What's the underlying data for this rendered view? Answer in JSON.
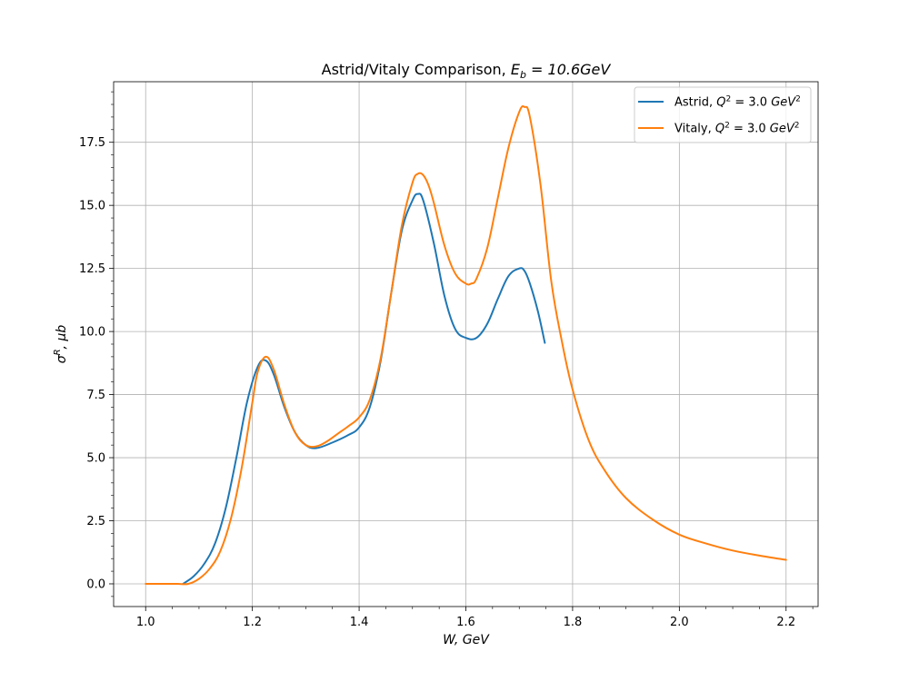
{
  "chart_data": {
    "type": "line",
    "title": "Astrid/Vitaly Comparison, E_b = 10.6GeV",
    "title_prefix": "Astrid/Vitaly Comparison, ",
    "title_math_base": "E",
    "title_math_sub": "b",
    "title_math_rest": " = 10.6GeV",
    "xlabel": "W, GeV",
    "ylabel": "σ^R, μb",
    "xlim": [
      0.94,
      2.26
    ],
    "ylim": [
      -0.9,
      19.9
    ],
    "grid": true,
    "legend_position": "top-right",
    "x_ticks": [
      1.0,
      1.2,
      1.4,
      1.6,
      1.8,
      2.0,
      2.2
    ],
    "x_tick_labels": [
      "1.0",
      "1.2",
      "1.4",
      "1.6",
      "1.8",
      "2.0",
      "2.2"
    ],
    "y_ticks": [
      0.0,
      2.5,
      5.0,
      7.5,
      10.0,
      12.5,
      15.0,
      17.5
    ],
    "y_tick_labels": [
      "0.0",
      "2.5",
      "5.0",
      "7.5",
      "10.0",
      "12.5",
      "15.0",
      "17.5"
    ],
    "series": [
      {
        "name": "Astrid, Q² = 3.0 GeV²",
        "color": "#1f77b4",
        "x": [
          1.07,
          1.09,
          1.11,
          1.13,
          1.15,
          1.17,
          1.19,
          1.21,
          1.225,
          1.24,
          1.26,
          1.28,
          1.3,
          1.32,
          1.35,
          1.38,
          1.4,
          1.42,
          1.44,
          1.46,
          1.48,
          1.5,
          1.51,
          1.52,
          1.54,
          1.56,
          1.58,
          1.6,
          1.62,
          1.64,
          1.66,
          1.68,
          1.7,
          1.71,
          1.72,
          1.735,
          1.748
        ],
        "y": [
          0.0,
          0.3,
          0.8,
          1.6,
          3.0,
          5.0,
          7.2,
          8.6,
          8.85,
          8.3,
          7.0,
          6.0,
          5.5,
          5.38,
          5.6,
          5.9,
          6.2,
          7.0,
          8.8,
          11.5,
          14.0,
          15.2,
          15.45,
          15.2,
          13.5,
          11.4,
          10.1,
          9.75,
          9.75,
          10.3,
          11.3,
          12.2,
          12.5,
          12.4,
          11.9,
          10.8,
          9.55
        ]
      },
      {
        "name": "Vitaly, Q² = 3.0 GeV²",
        "color": "#ff7f0e",
        "x": [
          1.0,
          1.02,
          1.04,
          1.06,
          1.08,
          1.1,
          1.12,
          1.14,
          1.16,
          1.18,
          1.2,
          1.21,
          1.225,
          1.24,
          1.26,
          1.28,
          1.3,
          1.32,
          1.34,
          1.36,
          1.38,
          1.4,
          1.42,
          1.44,
          1.46,
          1.48,
          1.5,
          1.51,
          1.52,
          1.53,
          1.54,
          1.56,
          1.58,
          1.6,
          1.61,
          1.62,
          1.64,
          1.66,
          1.68,
          1.7,
          1.71,
          1.72,
          1.74,
          1.76,
          1.78,
          1.8,
          1.83,
          1.86,
          1.9,
          1.95,
          2.0,
          2.05,
          2.1,
          2.15,
          2.2
        ],
        "y": [
          0.0,
          0.0,
          0.0,
          0.0,
          0.0,
          0.2,
          0.6,
          1.3,
          2.6,
          4.6,
          7.2,
          8.4,
          9.0,
          8.5,
          7.1,
          6.0,
          5.5,
          5.45,
          5.65,
          5.95,
          6.25,
          6.6,
          7.3,
          8.9,
          11.5,
          14.2,
          15.9,
          16.25,
          16.2,
          15.8,
          15.1,
          13.4,
          12.3,
          11.9,
          11.9,
          12.1,
          13.3,
          15.3,
          17.3,
          18.7,
          18.9,
          18.5,
          15.8,
          12.0,
          9.6,
          7.7,
          5.7,
          4.5,
          3.4,
          2.55,
          1.95,
          1.6,
          1.32,
          1.12,
          0.95
        ]
      }
    ],
    "legend": {
      "entries": [
        {
          "prefix": "Astrid, ",
          "math_base": "Q",
          "math_sup": "2",
          "math_mid": " = 3.0 ",
          "unit": "GeV",
          "unit_sup": "2"
        },
        {
          "prefix": "Vitaly, ",
          "math_base": "Q",
          "math_sup": "2",
          "math_mid": " = 3.0 ",
          "unit": "GeV",
          "unit_sup": "2"
        }
      ]
    },
    "axis_labels": {
      "x_text": "W, GeV",
      "y_base": "σ",
      "y_sup": "R",
      "y_rest": ", μb"
    }
  }
}
